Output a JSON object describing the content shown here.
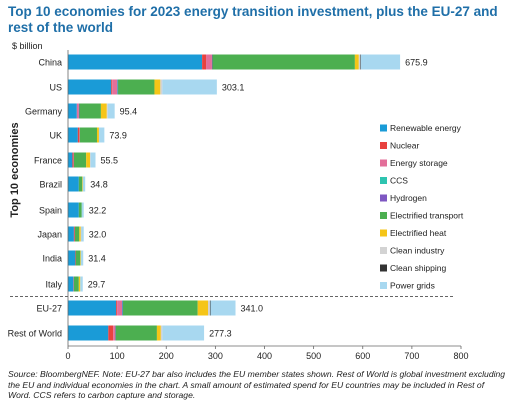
{
  "title": "Top 10 economies for 2023 energy transition investment, plus the EU-27 and rest of the world",
  "source_note": "Source: BloombergNEF. Note: EU-27 bar also includes the EU member states shown. Rest of World is global investment excluding the EU and individual economies in the chart. A small amount of estimated spend for EU countries may be included in Rest of Word. CCS refers to carbon capture and storage.",
  "chart_data": {
    "type": "bar",
    "orientation": "horizontal",
    "stacked": true,
    "title": "Top 10 economies for 2023 energy transition investment, plus the EU-27 and rest of the world",
    "unit_label": "$ billion",
    "ylabel": "Top 10 economies",
    "xlim": [
      0,
      800
    ],
    "xticks": [
      "0",
      "100",
      "200",
      "300",
      "400",
      "500",
      "600",
      "700",
      "800"
    ],
    "categories": [
      "China",
      "US",
      "Germany",
      "UK",
      "France",
      "Brazil",
      "Spain",
      "Japan",
      "India",
      "Italy",
      "EU-27",
      "Rest of World"
    ],
    "totals": [
      "675.9",
      "303.1",
      "95.4",
      "73.9",
      "55.5",
      "34.8",
      "32.2",
      "32.0",
      "31.4",
      "29.7",
      "341.0",
      "277.3"
    ],
    "legend_position": "right",
    "grid": false,
    "series": [
      {
        "name": "Renewable energy",
        "color": "#1a9bd7",
        "values": [
          273,
          88,
          18,
          20,
          9,
          22,
          22,
          12,
          15,
          11,
          98,
          82
        ]
      },
      {
        "name": "Nuclear",
        "color": "#e8423f",
        "values": [
          8,
          2,
          0,
          3,
          2,
          0,
          0,
          1,
          1,
          0,
          2,
          10
        ]
      },
      {
        "name": "Energy storage",
        "color": "#e36f9a",
        "values": [
          12,
          10,
          4,
          1,
          1,
          0,
          0,
          1,
          0,
          1,
          10,
          4
        ]
      },
      {
        "name": "CCS",
        "color": "#2ec4b0",
        "values": [
          0,
          1,
          0,
          0,
          0,
          0,
          0,
          0,
          0,
          0,
          1,
          0
        ]
      },
      {
        "name": "Hydrogen",
        "color": "#7e57c2",
        "values": [
          1,
          1,
          1,
          0,
          0,
          0,
          0,
          0,
          0,
          0,
          1,
          1
        ]
      },
      {
        "name": "Electrified transport",
        "color": "#4caf50",
        "values": [
          290,
          74,
          44,
          35,
          25,
          7,
          6,
          9,
          9,
          10,
          152,
          84
        ]
      },
      {
        "name": "Electrified heat",
        "color": "#f5c518",
        "values": [
          8,
          12,
          12,
          4,
          8,
          1,
          0,
          3,
          1,
          3,
          21,
          8
        ]
      },
      {
        "name": "Clean industry",
        "color": "#d3d3d3",
        "values": [
          3,
          4,
          2,
          0,
          1,
          0,
          0,
          1,
          0,
          0,
          4,
          3
        ]
      },
      {
        "name": "Clean shipping",
        "color": "#333333",
        "values": [
          1,
          0,
          0,
          0,
          0,
          0,
          0,
          0,
          0,
          0,
          1,
          0
        ]
      },
      {
        "name": "Power grids",
        "color": "#a8d8f0",
        "values": [
          80,
          111,
          14,
          11,
          10,
          5,
          4,
          5,
          5,
          5,
          51,
          85
        ]
      }
    ]
  }
}
